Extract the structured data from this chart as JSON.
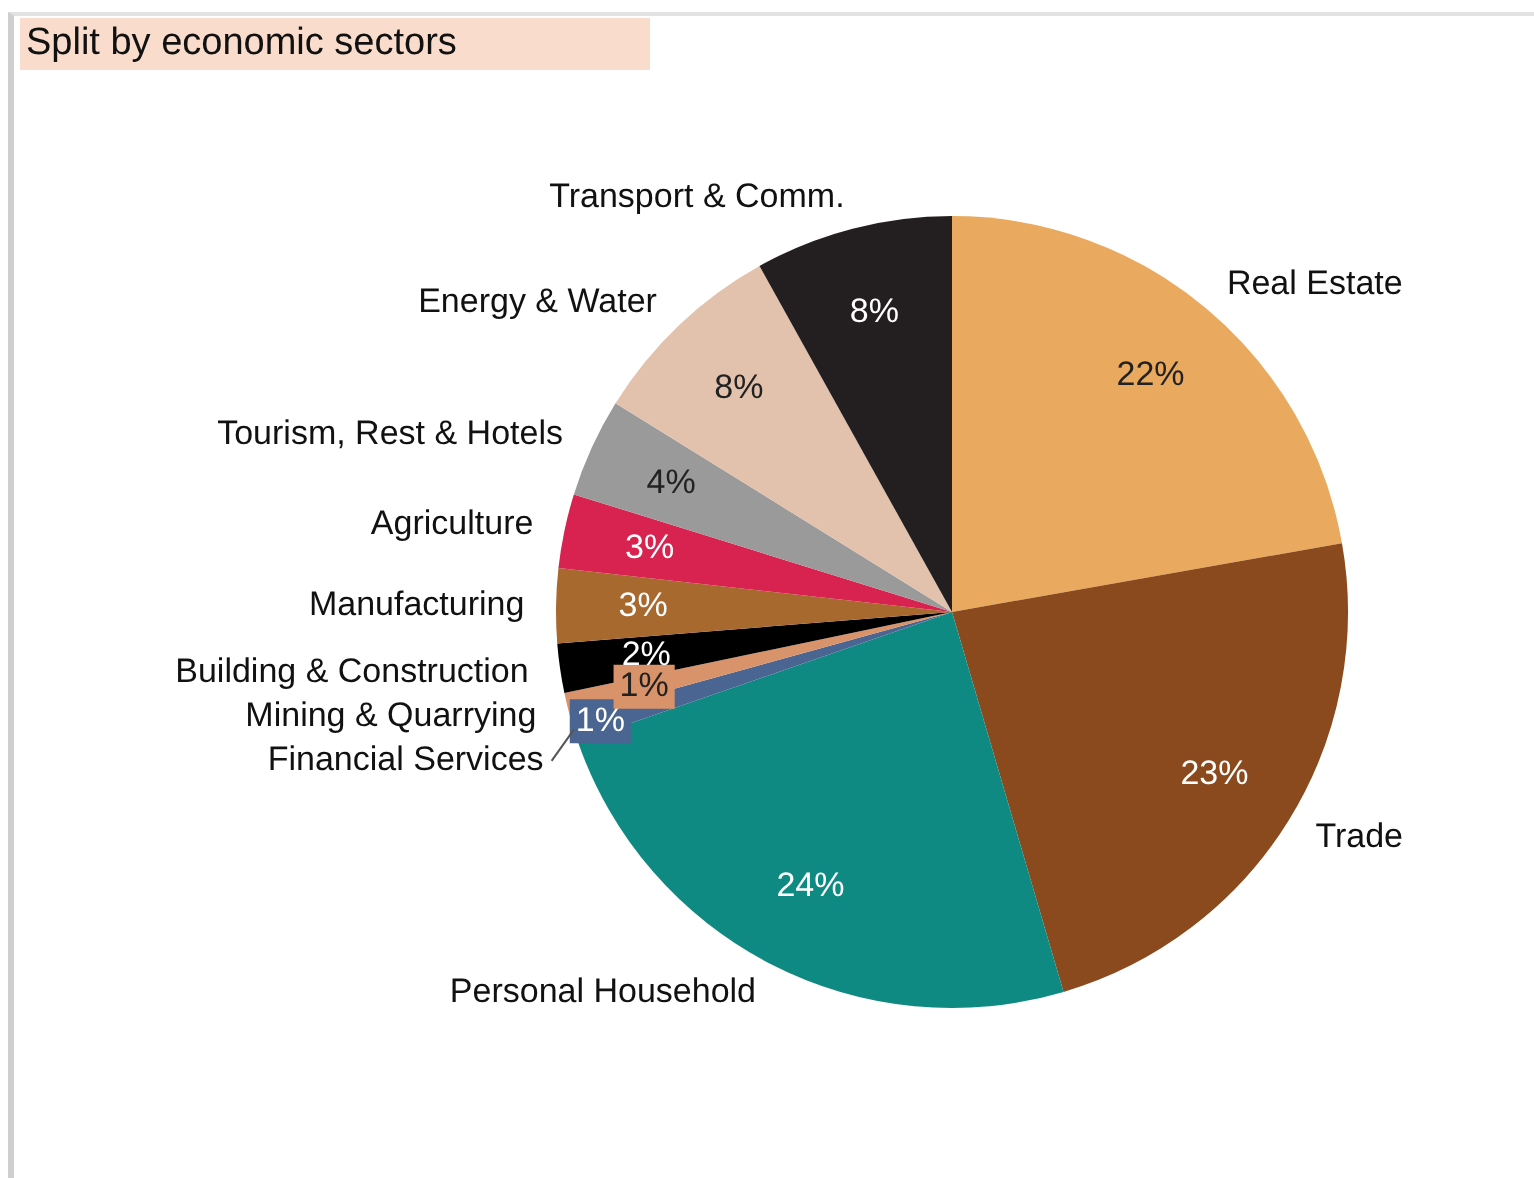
{
  "chart_data": {
    "type": "pie",
    "title": "Split by economic sectors",
    "categories": [
      "Real Estate",
      "Trade",
      "Personal Household",
      "Financial Services",
      "Mining & Quarrying",
      "Building & Construction",
      "Manufacturing",
      "Agriculture",
      "Tourism, Rest & Hotels",
      "Energy & Water",
      "Transport & Comm."
    ],
    "values": [
      22,
      23,
      24,
      1,
      1,
      2,
      3,
      3,
      4,
      8,
      8
    ],
    "colors": [
      "#e9a95f",
      "#8b4a1e",
      "#0e8a83",
      "#4a6591",
      "#d9936a",
      "#000000",
      "#a8692f",
      "#d8224f",
      "#9a9a9a",
      "#e2c2ad",
      "#231f20"
    ],
    "value_labels": [
      "22%",
      "23%",
      "24%",
      "1%",
      "1%",
      "2%",
      "3%",
      "3%",
      "4%",
      "8%",
      "8%"
    ]
  }
}
